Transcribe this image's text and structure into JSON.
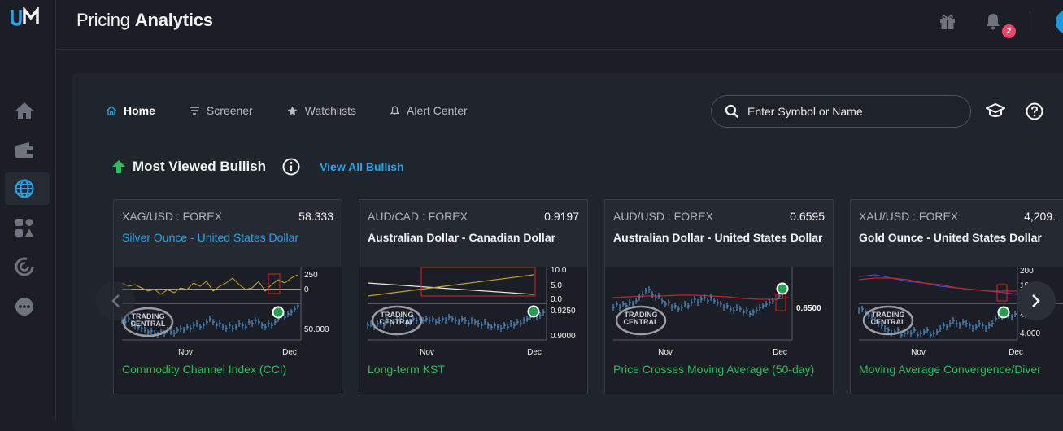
{
  "app": {
    "title_light": "Pricing",
    "title_bold": "Analytics",
    "notification_count": "2"
  },
  "tabs": [
    {
      "label": "Home"
    },
    {
      "label": "Screener"
    },
    {
      "label": "Watchlists"
    },
    {
      "label": "Alert Center"
    }
  ],
  "search": {
    "placeholder": "Enter Symbol or Name"
  },
  "section": {
    "title": "Most Viewed Bullish",
    "view_all": "View All Bullish"
  },
  "branding": {
    "tc_line1": "TRADING",
    "tc_line2": "CENTRAL"
  },
  "cards": [
    {
      "symbol": "XAG/USD : FOREX",
      "price": "58.333",
      "name": "Silver Ounce - United States Dollar",
      "signal": "Commodity Channel Index (CCI)",
      "ticks": [
        "250",
        "0",
        "50.000"
      ],
      "months": [
        "Nov",
        "Dec"
      ]
    },
    {
      "symbol": "AUD/CAD : FOREX",
      "price": "0.9197",
      "name": "Australian Dollar - Canadian Dollar",
      "signal": "Long-term KST",
      "ticks": [
        "10.0",
        "5.0",
        "0.0",
        "0.9250",
        "0.9000"
      ],
      "months": [
        "Nov",
        "Dec"
      ]
    },
    {
      "symbol": "AUD/USD : FOREX",
      "price": "0.6595",
      "name": "Australian Dollar - United States Dollar",
      "signal": "Price Crosses Moving Average (50-day)",
      "ticks": [
        "0.6500"
      ],
      "months": [
        "Nov",
        "Dec"
      ]
    },
    {
      "symbol": "XAU/USD : FOREX",
      "price": "4,209.",
      "name": "Gold Ounce - United States Dollar",
      "signal": "Moving Average Convergence/Diver",
      "ticks": [
        "200",
        "100",
        "4,250",
        "4,000"
      ],
      "months": [
        "Nov",
        "Dec"
      ]
    }
  ],
  "colors": {
    "accent_blue": "#2aa4e8",
    "signal_green": "#2ebd5c",
    "badge_pink": "#e8466a",
    "price_bars": "#5aa0e6"
  }
}
